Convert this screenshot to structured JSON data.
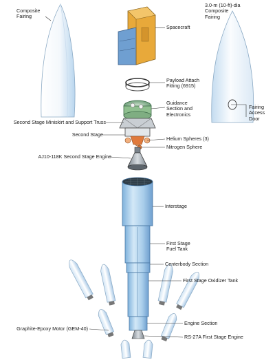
{
  "labels": {
    "composite_fairing_left": "Composite\nFairing",
    "composite_fairing_right": "3.0-m (10-ft)-dia\nComposite\nFairing",
    "spacecraft": "Spacecraft",
    "payload_attach_fitting": "Payload Attach\nFitting (6915)",
    "guidance_section": "Guidance\nSection and\nElectronics",
    "fairing_access_door": "Fairing\nAccess\nDoor",
    "second_stage_miniskirt": "Second Stage Miniskirt and Support Truss",
    "second_stage": "Second Stage",
    "helium_spheres": "Helium Spheres (3)",
    "nitrogen_sphere": "Nitrogen Sphere",
    "second_stage_engine": "AJ10-118K Second Stage Engine",
    "interstage": "Interstage",
    "first_stage_fuel_tank": "First Stage\nFuel Tank",
    "centerbody_section": "Centerbody Section",
    "first_stage_oxidizer_tank": "First Stage Oxidizer Tank",
    "engine_section": "Engine Section",
    "graphite_epoxy_motor": "Graphite-Epoxy Motor (GEM-40)",
    "first_stage_engine": "RS-27A First Stage Engine"
  },
  "colors": {
    "fairing_white": "#fafcfe",
    "fairing_blue": "#b9d6ee",
    "stage_blue": "#8dbfe4",
    "stage_light": "#d3e8f7",
    "spacecraft_gold": "#e8a93a",
    "spacecraft_blue": "#6f9fd1",
    "engine_gray": "#9aa3ab",
    "nozzle_orange": "#e07a3c",
    "guidance_green": "#8fbf8f",
    "line_dark": "#333333"
  }
}
